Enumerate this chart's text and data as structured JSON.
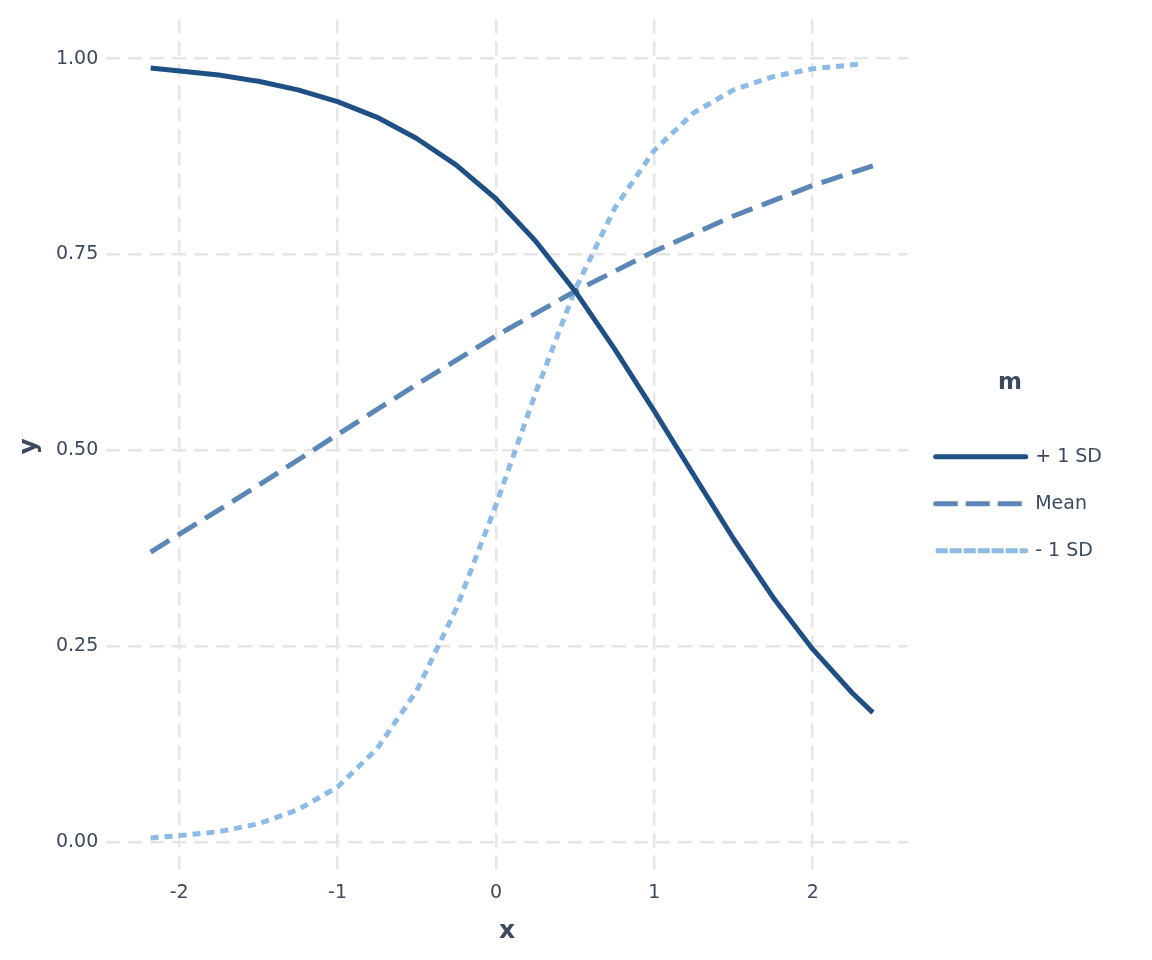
{
  "chart_data": {
    "type": "line",
    "xlabel": "x",
    "ylabel": "y",
    "legend_title": "m",
    "xlim": [
      -2.46,
      2.6
    ],
    "xticks": [
      -2,
      -1,
      0,
      1,
      2
    ],
    "ylim": [
      -0.04,
      1.05
    ],
    "yticks": [
      {
        "value": 0,
        "label": "0.00"
      },
      {
        "value": 0.25,
        "label": "0.25"
      },
      {
        "value": 0.5,
        "label": "0.50"
      },
      {
        "value": 0.75,
        "label": "0.75"
      },
      {
        "value": 1,
        "label": "1.00"
      }
    ],
    "grid": true,
    "legend": "right",
    "marker": "none",
    "series": [
      {
        "name": "+ 1 SD",
        "color": "#1f5085",
        "line_style": "solid",
        "x": [
          -2.18,
          -1.75,
          -1.5,
          -1.25,
          -1,
          -0.75,
          -0.5,
          -0.25,
          0,
          0.25,
          0.5,
          0.75,
          1,
          1.25,
          1.5,
          1.75,
          2,
          2.25,
          2.38
        ],
        "values": [
          0.988,
          0.979,
          0.971,
          0.96,
          0.945,
          0.925,
          0.898,
          0.864,
          0.821,
          0.767,
          0.703,
          0.629,
          0.55,
          0.468,
          0.387,
          0.312,
          0.246,
          0.19,
          0.165
        ]
      },
      {
        "name": "Mean",
        "color": "#5a86b8",
        "line_style": "dashed",
        "x": [
          -2.18,
          -1.5,
          -1,
          -0.5,
          0,
          0.5,
          1,
          1.5,
          2,
          2.38
        ],
        "values": [
          0.37,
          0.455,
          0.52,
          0.584,
          0.646,
          0.703,
          0.754,
          0.799,
          0.838,
          0.863
        ]
      },
      {
        "name": "- 1 SD",
        "color": "#8bbbe6",
        "line_style": "dotted",
        "x": [
          -2.18,
          -2,
          -1.75,
          -1.5,
          -1.25,
          -1,
          -0.75,
          -0.5,
          -0.25,
          0,
          0.25,
          0.5,
          0.75,
          1,
          1.25,
          1.5,
          1.75,
          2,
          2.3
        ],
        "values": [
          0.005,
          0.008,
          0.013,
          0.023,
          0.041,
          0.07,
          0.119,
          0.193,
          0.298,
          0.43,
          0.573,
          0.705,
          0.809,
          0.883,
          0.931,
          0.96,
          0.977,
          0.987,
          0.993
        ]
      }
    ]
  }
}
